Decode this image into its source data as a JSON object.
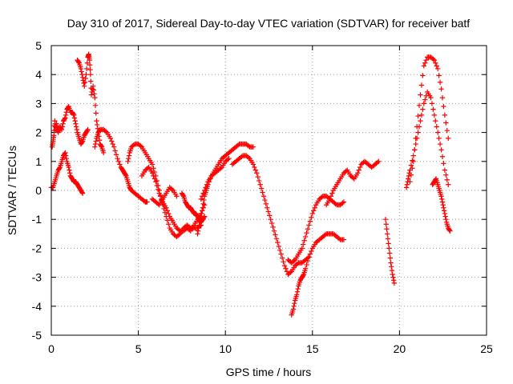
{
  "chart_data": {
    "type": "scatter",
    "title": "Day 310 of 2017, Sidereal Day-to-day VTEC variation (SDTVAR) for receiver batf",
    "xlabel": "GPS time / hours",
    "ylabel": "SDTVAR / TECUs",
    "xlim": [
      0,
      25
    ],
    "ylim": [
      -5,
      5
    ],
    "xticks": [
      "0",
      "5",
      "10",
      "15",
      "20",
      "25"
    ],
    "yticks": [
      "5",
      "4",
      "3",
      "2",
      "1",
      "0",
      "-1",
      "-2",
      "-3",
      "-4",
      "-5"
    ],
    "grid": true,
    "marker": "+",
    "color": "#ff0000",
    "series": [
      {
        "x": [
          0.0,
          0.1,
          0.2,
          0.3,
          0.4,
          0.5,
          0.6,
          0.7,
          0.8,
          0.9,
          1.0,
          1.1,
          1.2,
          1.3,
          1.4,
          1.5,
          1.6,
          1.7,
          1.8
        ],
        "y": [
          0.1,
          0.1,
          0.3,
          0.5,
          0.7,
          0.8,
          1.0,
          1.2,
          1.3,
          1.0,
          0.8,
          0.5,
          0.4,
          0.3,
          0.3,
          0.2,
          0.1,
          0.0,
          -0.1
        ]
      },
      {
        "x": [
          0.05,
          0.1,
          0.15,
          0.2,
          0.25,
          0.3,
          0.35,
          0.4,
          0.5,
          0.6,
          0.7,
          0.8,
          0.9,
          1.0,
          1.1,
          1.2,
          1.3,
          1.4,
          1.5,
          1.6,
          1.7,
          1.8,
          1.9,
          2.0,
          2.1
        ],
        "y": [
          1.5,
          1.7,
          1.9,
          2.4,
          2.1,
          2.3,
          2.1,
          2.0,
          2.2,
          2.1,
          2.4,
          2.5,
          2.8,
          2.9,
          2.7,
          2.7,
          2.6,
          2.3,
          2.0,
          1.8,
          1.6,
          1.7,
          1.9,
          2.0,
          2.1
        ]
      },
      {
        "x": [
          1.5,
          1.6,
          1.7,
          1.8,
          1.9,
          2.0,
          2.1,
          2.15,
          2.2,
          2.25,
          2.3,
          2.4,
          2.5,
          2.6,
          2.7,
          2.8,
          2.9,
          3.0
        ],
        "y": [
          4.5,
          4.4,
          4.2,
          3.9,
          3.6,
          4.0,
          4.6,
          4.7,
          4.5,
          4.0,
          3.3,
          3.6,
          3.2,
          2.4,
          2.0,
          1.6,
          1.5,
          1.3
        ]
      },
      {
        "x": [
          2.5,
          2.6,
          2.7,
          2.8,
          3.0,
          3.2,
          3.4,
          3.6,
          3.8,
          4.0,
          4.1,
          4.2,
          4.3,
          4.4,
          4.5,
          4.6,
          4.8,
          5.0,
          5.2,
          5.4,
          5.5
        ],
        "y": [
          1.5,
          1.8,
          2.0,
          2.1,
          2.1,
          2.0,
          1.8,
          1.5,
          1.1,
          0.8,
          0.7,
          0.6,
          0.5,
          0.3,
          0.1,
          0.0,
          -0.1,
          -0.2,
          -0.3,
          -0.4,
          -0.4
        ]
      },
      {
        "x": [
          4.4,
          4.5,
          4.6,
          4.8,
          5.0,
          5.2,
          5.4,
          5.6,
          5.8,
          6.0,
          6.2,
          6.4,
          6.6,
          6.8,
          7.0,
          7.2,
          7.4,
          7.6,
          7.8,
          8.0,
          8.2,
          8.4,
          8.6
        ],
        "y": [
          1.0,
          1.3,
          1.5,
          1.6,
          1.6,
          1.5,
          1.3,
          1.1,
          0.9,
          0.5,
          0.0,
          -0.5,
          -0.9,
          -1.3,
          -1.5,
          -1.6,
          -1.5,
          -1.3,
          -1.2,
          -1.3,
          -1.3,
          -1.3,
          -1.2
        ]
      },
      {
        "x": [
          5.2,
          5.4,
          5.6,
          5.8,
          6.0,
          6.2,
          6.4,
          6.6,
          6.8,
          7.0,
          7.2,
          7.4,
          7.6,
          7.8,
          8.0,
          8.2,
          8.4,
          8.6,
          8.8
        ],
        "y": [
          0.5,
          0.7,
          0.8,
          0.6,
          0.3,
          -0.1,
          -0.4,
          -0.6,
          -0.9,
          -1.1,
          -1.3,
          -1.4,
          -1.4,
          -1.3,
          -1.4,
          -1.2,
          -1.0,
          -0.8,
          -0.5
        ]
      },
      {
        "x": [
          5.8,
          6.0,
          6.2,
          6.4,
          6.6,
          6.8,
          7.0,
          7.2
        ],
        "y": [
          -0.3,
          -0.4,
          -0.5,
          -0.3,
          -0.1,
          0.1,
          0.0,
          -0.2
        ]
      },
      {
        "x": [
          7.5,
          7.6,
          7.7,
          7.8,
          7.9,
          8.0,
          8.1,
          8.2,
          8.3,
          8.4,
          8.5,
          8.6,
          8.7,
          8.8
        ],
        "y": [
          -0.1,
          -0.2,
          -0.4,
          -0.5,
          -0.6,
          -0.6,
          -0.7,
          -0.8,
          -0.8,
          -0.9,
          -1.0,
          -1.1,
          -1.0,
          -0.9
        ]
      },
      {
        "x": [
          8.4,
          8.5,
          8.6,
          8.7,
          8.8,
          8.9,
          9.0,
          9.2,
          9.4,
          9.6,
          9.8,
          10.0,
          10.2,
          10.4,
          10.6,
          10.8,
          11.0,
          11.2,
          11.4,
          11.6
        ],
        "y": [
          -1.5,
          -1.2,
          -0.9,
          -0.6,
          -0.2,
          0.0,
          0.2,
          0.5,
          0.7,
          0.9,
          1.1,
          1.2,
          1.3,
          1.4,
          1.5,
          1.6,
          1.6,
          1.6,
          1.5,
          1.5
        ]
      },
      {
        "x": [
          8.6,
          8.8,
          9.0,
          9.2,
          9.4,
          9.6,
          9.8,
          10.0,
          10.2
        ],
        "y": [
          -0.3,
          0.0,
          0.3,
          0.5,
          0.6,
          0.7,
          0.8,
          1.0,
          1.1
        ]
      },
      {
        "x": [
          10.4,
          10.6,
          10.8,
          11.0,
          11.2,
          11.4,
          11.6,
          11.8,
          12.0,
          12.2,
          12.4,
          12.6,
          12.8,
          13.0,
          13.2,
          13.4,
          13.6,
          13.8,
          14.0,
          14.2,
          14.4,
          14.6,
          14.8
        ],
        "y": [
          0.9,
          1.0,
          1.1,
          1.2,
          1.2,
          1.1,
          0.9,
          0.6,
          0.2,
          -0.2,
          -0.6,
          -1.0,
          -1.4,
          -1.8,
          -2.2,
          -2.6,
          -2.9,
          -2.8,
          -2.6,
          -2.5,
          -2.5,
          -2.4,
          -2.3
        ]
      },
      {
        "x": [
          13.8,
          13.9,
          14.0,
          14.1,
          14.2,
          14.3,
          14.4,
          14.5,
          14.6,
          14.8,
          15.0,
          15.2,
          15.4,
          15.6,
          15.8,
          16.0,
          16.2,
          16.4,
          16.6,
          16.8
        ],
        "y": [
          -4.3,
          -4.1,
          -3.8,
          -3.6,
          -3.3,
          -3.1,
          -3.0,
          -2.9,
          -2.7,
          -2.3,
          -2.0,
          -1.8,
          -1.7,
          -1.6,
          -1.5,
          -1.5,
          -1.5,
          -1.6,
          -1.7,
          -1.7
        ]
      },
      {
        "x": [
          13.6,
          13.8,
          14.0,
          14.2,
          14.4,
          14.6,
          14.8,
          15.0,
          15.2,
          15.4,
          15.6,
          15.8,
          16.0,
          16.2,
          16.4,
          16.6,
          16.8
        ],
        "y": [
          -2.4,
          -2.5,
          -2.4,
          -2.2,
          -2.0,
          -1.6,
          -1.2,
          -0.8,
          -0.5,
          -0.3,
          -0.2,
          -0.2,
          -0.3,
          -0.4,
          -0.5,
          -0.5,
          -0.4
        ]
      },
      {
        "x": [
          15.8,
          16.0,
          16.2,
          16.4,
          16.6,
          16.8,
          17.0,
          17.2,
          17.4,
          17.6,
          17.8,
          18.0,
          18.2,
          18.4,
          18.6,
          18.8
        ],
        "y": [
          -0.5,
          -0.3,
          0.0,
          0.2,
          0.4,
          0.6,
          0.7,
          0.5,
          0.4,
          0.6,
          0.9,
          1.0,
          0.9,
          0.8,
          0.9,
          1.0
        ]
      },
      {
        "x": [
          19.2,
          19.3,
          19.4,
          19.5,
          19.6,
          19.7
        ],
        "y": [
          -1.0,
          -1.5,
          -2.0,
          -2.5,
          -2.9,
          -3.2
        ]
      },
      {
        "x": [
          20.4,
          20.5,
          20.6,
          20.8,
          21.0,
          21.2,
          21.4,
          21.6,
          21.8,
          22.0,
          22.2,
          22.4,
          22.6,
          22.8
        ],
        "y": [
          0.1,
          0.4,
          0.7,
          1.2,
          1.8,
          2.4,
          3.0,
          3.4,
          3.2,
          2.6,
          2.0,
          1.4,
          0.7,
          0.2
        ]
      },
      {
        "x": [
          20.6,
          20.8,
          21.0,
          21.2,
          21.4,
          21.6,
          21.8,
          22.0,
          22.2,
          22.4,
          22.6,
          22.8
        ],
        "y": [
          0.3,
          1.0,
          2.2,
          3.3,
          4.3,
          4.6,
          4.6,
          4.5,
          4.2,
          3.5,
          2.6,
          1.8
        ]
      },
      {
        "x": [
          21.9,
          22.0,
          22.1,
          22.2,
          22.3,
          22.4,
          22.5,
          22.6,
          22.7,
          22.8,
          22.9
        ],
        "y": [
          0.2,
          0.3,
          0.4,
          0.2,
          0.0,
          -0.2,
          -0.5,
          -0.8,
          -1.1,
          -1.3,
          -1.4
        ]
      }
    ]
  }
}
